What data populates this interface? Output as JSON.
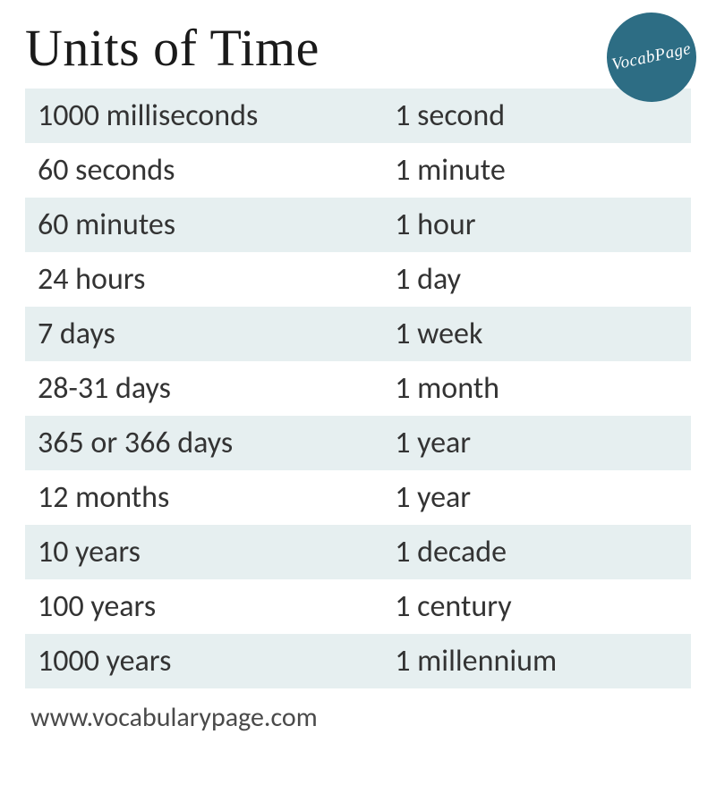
{
  "title": "Units of Time",
  "logo": {
    "text": "VocabPage",
    "bg_color": "#2d6d84",
    "text_color": "#ffffff"
  },
  "footer": "www.vocabularypage.com",
  "table": {
    "row_bg_odd": "#e6eff0",
    "row_bg_even": "#ffffff",
    "text_color": "#333333",
    "font_size": 34,
    "rows": [
      {
        "left": "1000 milliseconds",
        "right": "1 second"
      },
      {
        "left": "60 seconds",
        "right": "1 minute"
      },
      {
        "left": "60 minutes",
        "right": "1 hour"
      },
      {
        "left": "24 hours",
        "right": "1 day"
      },
      {
        "left": "7 days",
        "right": "1 week"
      },
      {
        "left": "28-31 days",
        "right": "1 month"
      },
      {
        "left": "365 or 366 days",
        "right": "1 year"
      },
      {
        "left": "12 months",
        "right": "1 year"
      },
      {
        "left": "10 years",
        "right": "1 decade"
      },
      {
        "left": "100 years",
        "right": "1 century"
      },
      {
        "left": "1000 years",
        "right": "1 millennium"
      }
    ]
  }
}
